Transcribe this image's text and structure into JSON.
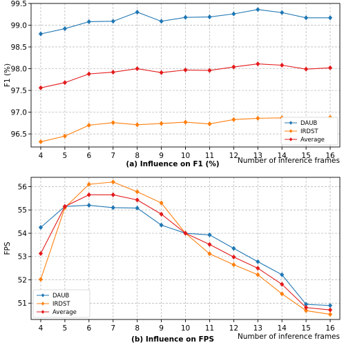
{
  "figure": {
    "xlabel": "Number of inference frames"
  },
  "chart_data": [
    {
      "type": "line",
      "caption": "(a) Influence on F1 (%)",
      "xlabel": "Number of inference frames",
      "ylabel": "F1 (%)",
      "x": [
        4,
        5,
        6,
        7,
        8,
        9,
        10,
        11,
        12,
        13,
        14,
        15,
        16
      ],
      "xlim": [
        3.6,
        16.4
      ],
      "ylim": [
        96.2,
        99.5
      ],
      "yticks": [
        96.5,
        97.0,
        97.5,
        98.0,
        98.5,
        99.0,
        99.5
      ],
      "ytick_labels": [
        "96.5",
        "97.0",
        "97.5",
        "98.0",
        "98.5",
        "99.0",
        "99.5"
      ],
      "grid": true,
      "legend_position": "bottom-right",
      "series": [
        {
          "name": "DAUB",
          "color": "#1f77b4",
          "marker": "diamond",
          "values": [
            98.8,
            98.92,
            99.08,
            99.09,
            99.3,
            99.09,
            99.18,
            99.19,
            99.26,
            99.36,
            99.29,
            99.17,
            99.17
          ]
        },
        {
          "name": "IRDST",
          "color": "#ff7f0e",
          "marker": "diamond",
          "values": [
            96.32,
            96.45,
            96.7,
            96.76,
            96.71,
            96.74,
            96.77,
            96.73,
            96.83,
            96.86,
            96.87,
            96.82,
            96.88
          ]
        },
        {
          "name": "Average",
          "color": "#e31a1c",
          "marker": "diamond",
          "values": [
            97.56,
            97.68,
            97.88,
            97.92,
            98.0,
            97.91,
            97.97,
            97.96,
            98.04,
            98.11,
            98.08,
            97.99,
            98.02
          ]
        }
      ]
    },
    {
      "type": "line",
      "caption": "(b) Influence on FPS",
      "xlabel": "Number of inference frames",
      "ylabel": "FPS",
      "x": [
        4,
        5,
        6,
        7,
        8,
        9,
        10,
        11,
        12,
        13,
        14,
        15,
        16
      ],
      "xlim": [
        3.6,
        16.4
      ],
      "ylim": [
        50.3,
        56.4
      ],
      "yticks": [
        51,
        52,
        53,
        54,
        55,
        56
      ],
      "ytick_labels": [
        "51",
        "52",
        "53",
        "54",
        "55",
        "56"
      ],
      "grid": true,
      "legend_position": "bottom-left",
      "series": [
        {
          "name": "DAUB",
          "color": "#1f77b4",
          "marker": "diamond",
          "values": [
            54.25,
            55.15,
            55.2,
            55.1,
            55.08,
            54.35,
            54.0,
            53.93,
            53.35,
            52.78,
            52.22,
            50.95,
            50.9
          ]
        },
        {
          "name": "IRDST",
          "color": "#ff7f0e",
          "marker": "diamond",
          "values": [
            52.02,
            55.1,
            56.1,
            56.2,
            55.78,
            55.3,
            54.0,
            53.12,
            52.65,
            52.22,
            51.4,
            50.68,
            50.52
          ]
        },
        {
          "name": "Average",
          "color": "#e31a1c",
          "marker": "diamond",
          "values": [
            53.13,
            55.15,
            55.65,
            55.65,
            55.43,
            54.82,
            54.0,
            53.52,
            52.98,
            52.5,
            51.81,
            50.81,
            50.71
          ]
        }
      ]
    }
  ]
}
